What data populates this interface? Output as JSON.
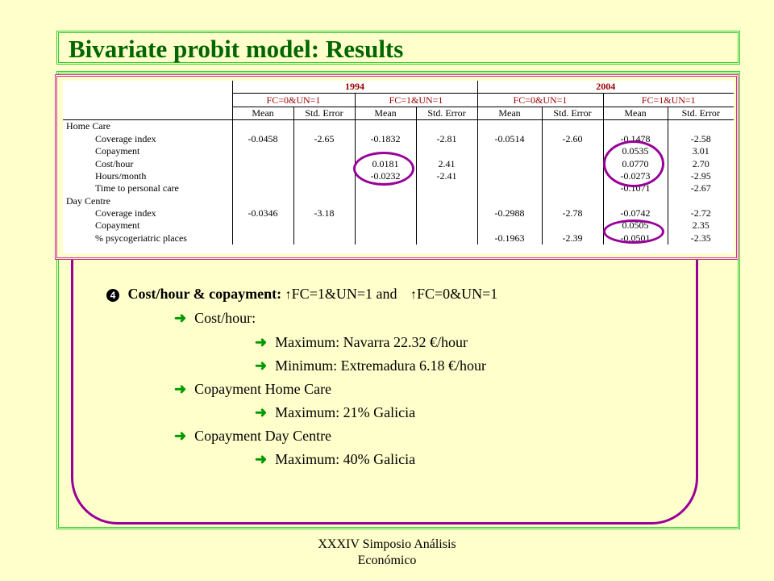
{
  "title": "Bivariate probit model: Results",
  "table": {
    "years": [
      "1994",
      "2004"
    ],
    "groups": [
      "FC=0&UN=1",
      "FC=1&UN=1",
      "FC=0&UN=1",
      "FC=1&UN=1"
    ],
    "col_headers": [
      "Mean",
      "Std. Error",
      "Mean",
      "Std. Error",
      "Mean",
      "Std. Error",
      "Mean",
      "Std. Error"
    ],
    "rows": [
      {
        "label": "Home Care",
        "indent": false,
        "cells": [
          "",
          "",
          "",
          "",
          "",
          "",
          "",
          ""
        ]
      },
      {
        "label": "Coverage index",
        "indent": true,
        "cells": [
          "-0.0458",
          "-2.65",
          "-0.1832",
          "-2.81",
          "-0.0514",
          "-2.60",
          "-0.1478",
          "-2.58"
        ]
      },
      {
        "label": "Copayment",
        "indent": true,
        "cells": [
          "",
          "",
          "",
          "",
          "",
          "",
          "0.0535",
          "3.01"
        ]
      },
      {
        "label": "Cost/hour",
        "indent": true,
        "cells": [
          "",
          "",
          "0.0181",
          "2.41",
          "",
          "",
          "0.0770",
          "2.70"
        ]
      },
      {
        "label": "Hours/month",
        "indent": true,
        "cells": [
          "",
          "",
          "-0.0232",
          "-2.41",
          "",
          "",
          "-0.0273",
          "-2.95"
        ]
      },
      {
        "label": "Time to personal care",
        "indent": true,
        "cells": [
          "",
          "",
          "",
          "",
          "",
          "",
          "-0.1071",
          "-2.67"
        ]
      },
      {
        "label": "Day Centre",
        "indent": false,
        "cells": [
          "",
          "",
          "",
          "",
          "",
          "",
          "",
          ""
        ]
      },
      {
        "label": "Coverage index",
        "indent": true,
        "cells": [
          "-0.0346",
          "-3.18",
          "",
          "",
          "-0.2988",
          "-2.78",
          "-0.0742",
          "-2.72"
        ]
      },
      {
        "label": "Copayment",
        "indent": true,
        "cells": [
          "",
          "",
          "",
          "",
          "",
          "",
          "0.0505",
          "2.35"
        ]
      },
      {
        "label": "% psycogeriatric places",
        "indent": true,
        "cells": [
          "",
          "",
          "",
          "",
          "-0.1963",
          "-2.39",
          "-0.0501",
          "-2.35"
        ]
      }
    ]
  },
  "bullets": {
    "number": "4",
    "heading": "Cost/hour & copayment:",
    "up_arrow": "↑",
    "cond1": "FC=1&UN=1  and",
    "cond2": "FC=0&UN=1",
    "arrow": "➜",
    "cost_hour": "Cost/hour:",
    "max_cost": "Maximum: Navarra 22.32 €/hour",
    "min_cost": "Minimum: Extremadura 6.18 €/hour",
    "copay_home": "Copayment Home Care",
    "max_home": "Maximum: 21% Galicia",
    "copay_day": "Copayment Day Centre",
    "max_day": "Maximum: 40% Galicia"
  },
  "footer": {
    "line1": "XXXIV Simposio Análisis",
    "line2": "Económico"
  },
  "colors": {
    "title": "#006600",
    "frame": "#33cc33",
    "highlight": "#990099",
    "background": "#ffffcc"
  }
}
